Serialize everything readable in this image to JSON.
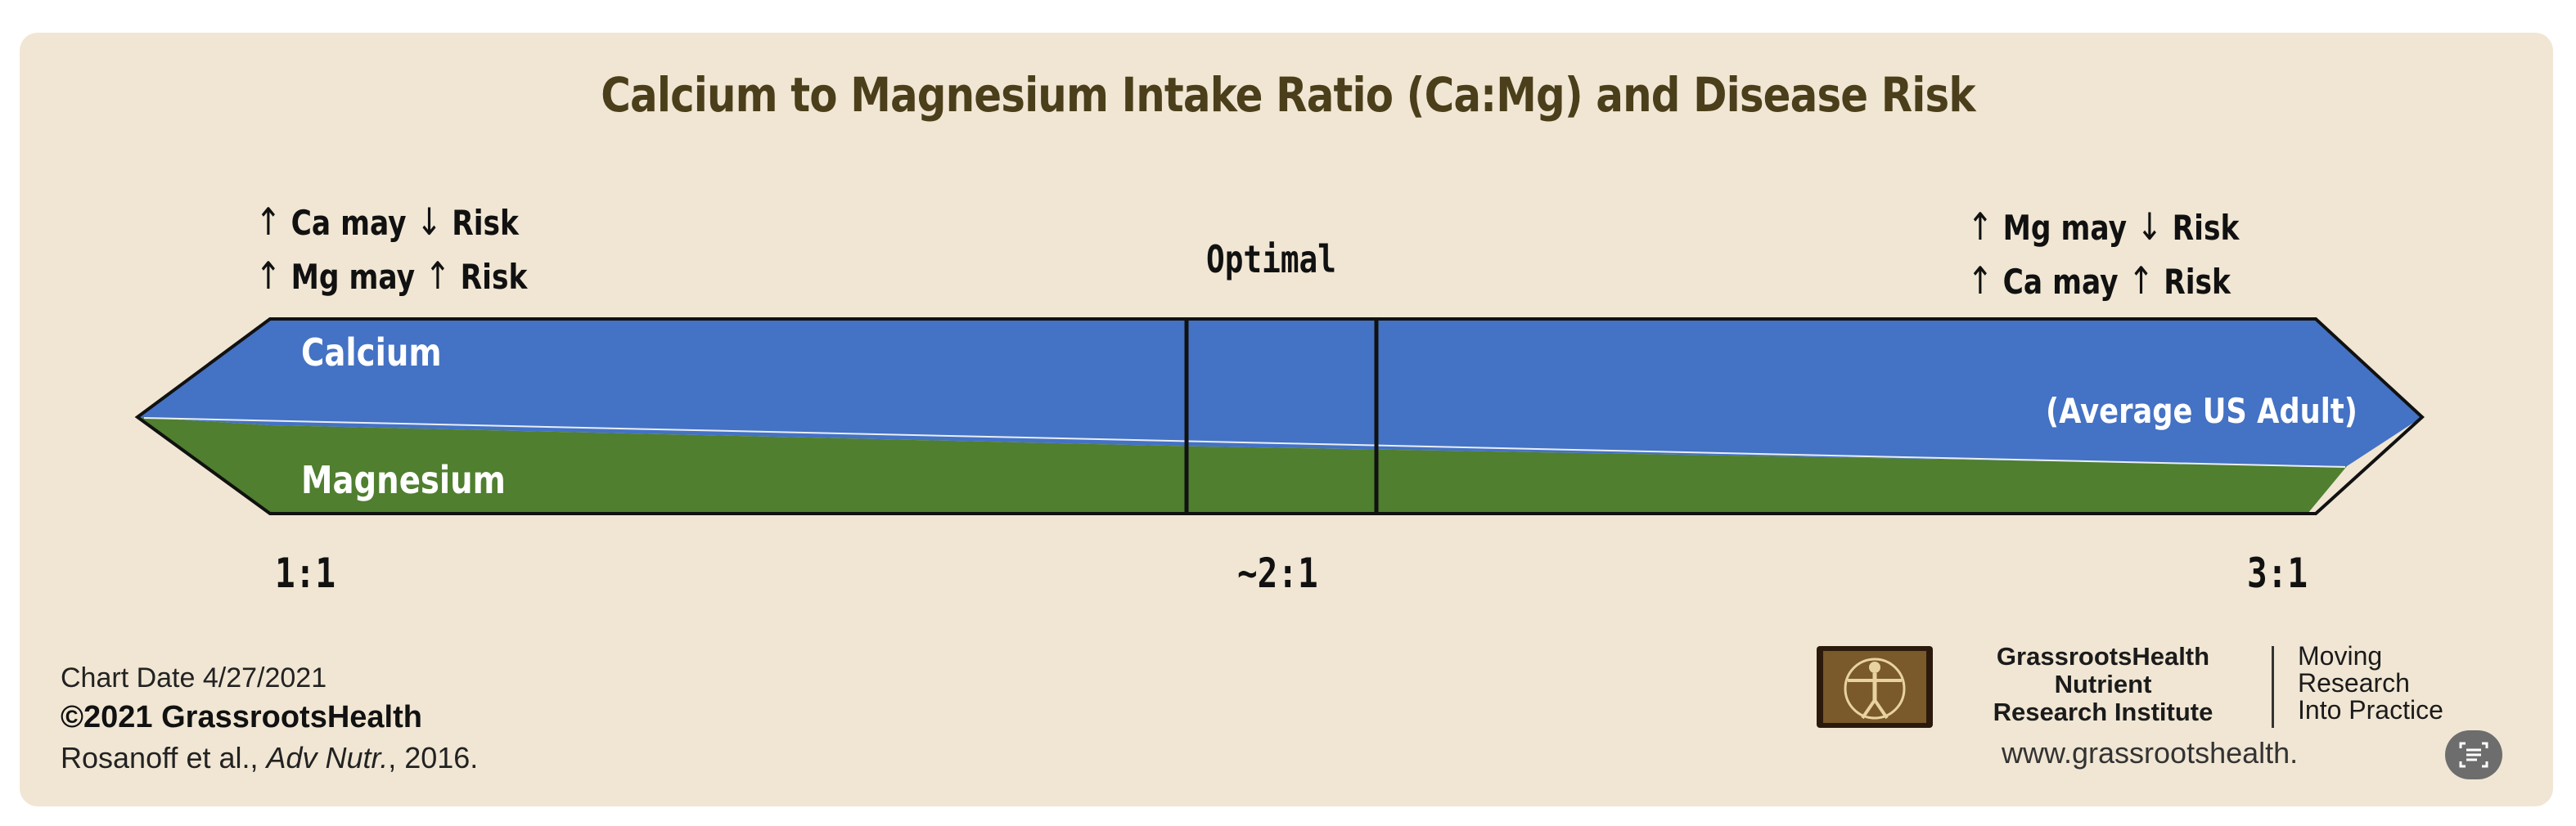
{
  "title": "Calcium to Magnesium Intake Ratio (Ca:Mg) and Disease Risk",
  "left_notes": [
    {
      "arrow1": "↑",
      "text1": "Ca may",
      "arrow2": "↓",
      "text2": "Risk"
    },
    {
      "arrow1": "↑",
      "text1": "Mg may",
      "arrow2": "↑",
      "text2": "Risk"
    }
  ],
  "right_notes": [
    {
      "arrow1": "↑",
      "text1": "Mg may",
      "arrow2": "↓",
      "text2": "Risk"
    },
    {
      "arrow1": "↑",
      "text1": "Ca may",
      "arrow2": "↑",
      "text2": "Risk"
    }
  ],
  "optimal_label": "Optimal",
  "band": {
    "calcium_label": "Calcium",
    "magnesium_label": "Magnesium",
    "average_label": "(Average US Adult)",
    "calcium_color": "#4472c4",
    "magnesium_color": "#4f7f2f"
  },
  "ticks": {
    "left": "1:1",
    "middle": "~2:1",
    "right": "3:1"
  },
  "footer": {
    "chart_date": "Chart Date 4/27/2021",
    "copyright": "©2021 GrassrootsHealth",
    "citation_prefix": "Rosanoff et al., ",
    "citation_journal": "Adv Nutr.",
    "citation_suffix": ", 2016."
  },
  "brand": {
    "org_line1": "GrassrootsHealth",
    "org_line2": "Nutrient",
    "org_line3": "Research Institute",
    "tag_line1": "Moving",
    "tag_line2": "Research",
    "tag_line3": "Into Practice",
    "url": "www.grassrootshealth.",
    "logo_icon": "vitruvian-man-icon",
    "corner_icon": "document-scan-icon"
  }
}
